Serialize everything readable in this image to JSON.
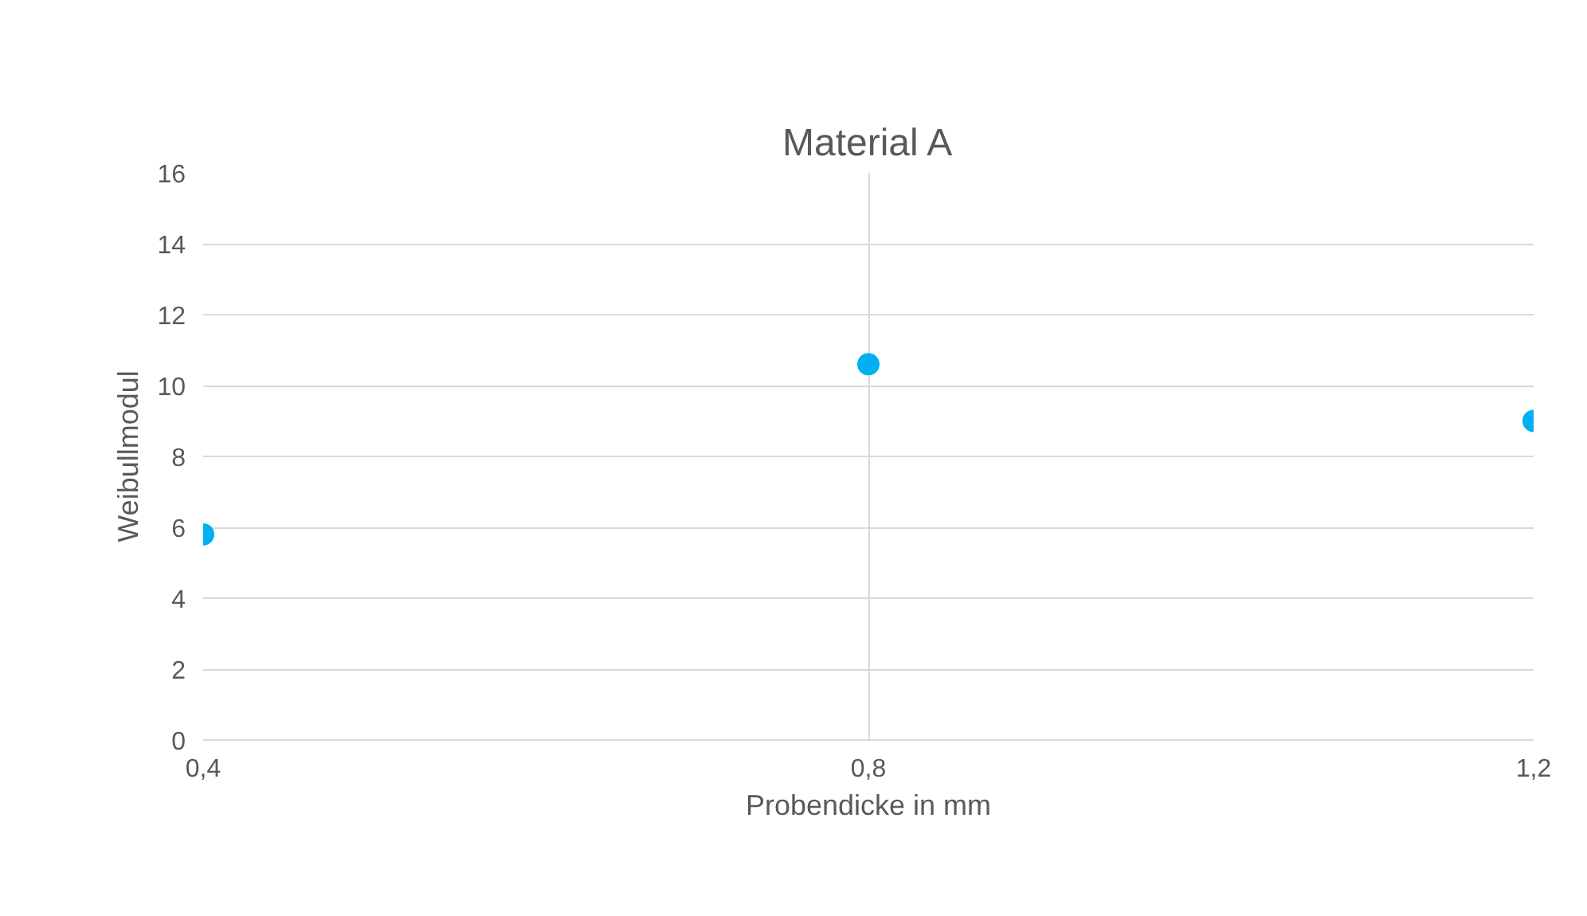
{
  "chart_data": {
    "type": "scatter",
    "title": "Material A",
    "xlabel": "Probendicke in mm",
    "ylabel": "Weibullmodul",
    "x": [
      0.4,
      0.8,
      1.2
    ],
    "series": [
      {
        "color": "#00b0f0",
        "values": [
          5.8,
          10.6,
          9.0
        ]
      }
    ],
    "xlim": [
      0.4,
      1.2
    ],
    "xticks": [
      {
        "value": 0.4,
        "label": "0,4"
      },
      {
        "value": 0.8,
        "label": "0,8"
      },
      {
        "value": 1.2,
        "label": "1,2"
      }
    ],
    "ylim": [
      0,
      16
    ],
    "yticks": [
      0,
      2,
      4,
      6,
      8,
      10,
      12,
      14,
      16
    ],
    "grid": true,
    "marker": "circle"
  }
}
